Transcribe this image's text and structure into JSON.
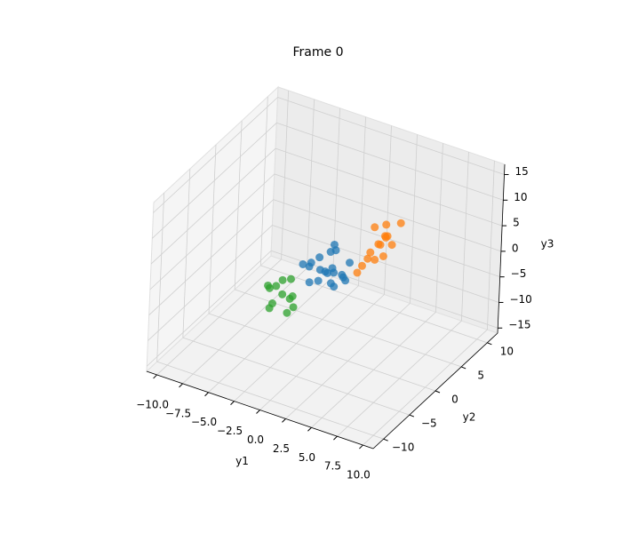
{
  "chart_data": {
    "type": "scatter3d",
    "title": "Frame 0",
    "xlabel": "y1",
    "ylabel": "y2",
    "zlabel": "y3",
    "xlim": [
      -11,
      11
    ],
    "ylim": [
      -12,
      12
    ],
    "zlim": [
      -16,
      17
    ],
    "xticks": [
      {
        "value": -10,
        "label": "−10.0"
      },
      {
        "value": -7.5,
        "label": "−7.5"
      },
      {
        "value": -5,
        "label": "−5.0"
      },
      {
        "value": -2.5,
        "label": "−2.5"
      },
      {
        "value": 0,
        "label": "0.0"
      },
      2.5,
      {
        "value": 5,
        "label": "5.0"
      },
      7.5,
      {
        "value": 10,
        "label": "10.0"
      }
    ],
    "yticks": [
      {
        "value": -10,
        "label": "−10"
      },
      {
        "value": -5,
        "label": "−5"
      },
      0,
      5,
      10
    ],
    "zticks": [
      {
        "value": -15,
        "label": "−15"
      },
      {
        "value": -10,
        "label": "−10"
      },
      {
        "value": -5,
        "label": "−5"
      },
      0,
      5,
      10,
      15
    ],
    "grid": true,
    "series": [
      {
        "color": "#1f77b4",
        "x": [
          0.5,
          -1,
          1.2,
          -0.3,
          0.8,
          -1.5,
          0.2,
          1.8,
          -0.8,
          0.4,
          -0.2,
          1.0,
          -1.2,
          0.6,
          2.2,
          -0.5,
          0.1,
          1.5,
          -2.0,
          0.9
        ],
        "y": [
          0.3,
          -1.2,
          0.8,
          1.5,
          -0.5,
          0.2,
          -1.8,
          1.0,
          0.6,
          -0.9,
          2.0,
          -0.3,
          1.2,
          0.4,
          -1.0,
          -2.1,
          1.7,
          0.9,
          -0.4,
          -1.5
        ],
        "z": [
          0.5,
          1.2,
          -0.8,
          2.0,
          -1.5,
          0.3,
          -0.2,
          1.8,
          -1.0,
          0.9,
          3.0,
          -2.2,
          0.6,
          -0.4,
          1.1,
          -0.7,
          2.4,
          -1.8,
          0.2,
          1.5
        ]
      },
      {
        "color": "#ff7f0e",
        "x": [
          4,
          3.5,
          4.6,
          3.2,
          4.9,
          4.2,
          3.8,
          5.2,
          3.0,
          4.4,
          5.5,
          3.6,
          4.0,
          4.8,
          2.8
        ],
        "y": [
          2,
          1.5,
          2.5,
          2.8,
          1.2,
          3.0,
          1.8,
          2.2,
          1.0,
          2.6,
          3.2,
          0.8,
          2.4,
          1.6,
          0.5
        ],
        "z": [
          6,
          4.5,
          7.5,
          8,
          5,
          9,
          3,
          6.5,
          2,
          7,
          10,
          4,
          5.5,
          8.5,
          1
        ]
      },
      {
        "color": "#2ca02c",
        "x": [
          -5,
          -6,
          -4.5,
          -5.5,
          -4,
          -6.5,
          -5.2,
          -4.8,
          -3.8,
          -6,
          -5.8,
          -4.2
        ],
        "y": [
          2,
          1.5,
          2.5,
          3,
          1,
          2.2,
          0.5,
          3.2,
          1.8,
          2.8,
          1.2,
          2.4
        ],
        "z": [
          -10,
          -9,
          -11,
          -8.5,
          -12,
          -9.5,
          -10.5,
          -8,
          -11.5,
          -9.8,
          -12.5,
          -10.2
        ]
      }
    ]
  }
}
